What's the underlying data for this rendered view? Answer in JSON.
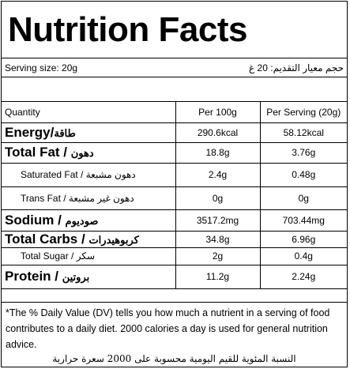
{
  "title": "Nutrition Facts",
  "serving": {
    "en": "Serving size: 20g",
    "ar": "حجم معيار التقديم: 20 غ"
  },
  "table": {
    "headers": [
      "Quantity",
      "Per 100g",
      "Per Serving (20g)"
    ],
    "rows": [
      {
        "name_en": "Energy",
        "name_ar": "طاقة",
        "per100": "290.6kcal",
        "serving": "58.12kcal"
      },
      {
        "name_en": "Total Fat",
        "name_ar": "دهون",
        "per100": "18.8g",
        "serving": "3.76g"
      },
      {
        "name_en": "Saturated Fat",
        "name_ar": "دهون مشبعة",
        "per100": "2.4g",
        "serving": "0.48g"
      },
      {
        "name_en": "Trans Fat",
        "name_ar": "دهون غير مشبعة",
        "per100": "0g",
        "serving": "0g"
      },
      {
        "name_en": "Sodium",
        "name_ar": "صوديوم",
        "per100": "3517.2mg",
        "serving": "703.44mg"
      },
      {
        "name_en": "Total Carbs",
        "name_ar": "كربوهيدرات",
        "per100": "34.8g",
        "serving": "6.96g"
      },
      {
        "name_en": "Total Sugar",
        "name_ar": "سكر",
        "per100": "2g",
        "serving": "0.4g"
      },
      {
        "name_en": "Protein",
        "name_ar": "بروتين",
        "per100": "11.2g",
        "serving": "2.24g"
      }
    ]
  },
  "footnote": {
    "en": "*The % Daily Value (DV) tells you how much a nutrient in a serving of food contributes to a daily diet. 2000 calories a day is used for general nutrition advice.",
    "ar": "النسبة المئوية للقيم اليومية محسوبة على 2000 سعرة حرارية"
  }
}
